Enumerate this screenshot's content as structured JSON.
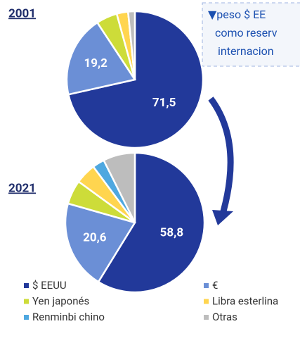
{
  "chart_data": [
    {
      "type": "pie",
      "title": "2001",
      "categories": [
        "$ EEUU",
        "€",
        "Yen japonés",
        "Libra esterlina",
        "Renminbi chino",
        "Otras"
      ],
      "values": [
        71.5,
        19.2,
        5.0,
        2.7,
        0,
        1.6
      ],
      "value_labels": [
        "71,5",
        "19,2",
        null,
        null,
        null,
        null
      ],
      "colors": [
        "#22399a",
        "#6b8fd6",
        "#cddc39",
        "#ffd54f",
        "#4fa8e0",
        "#bdbdbd"
      ],
      "annotation": [
        "▼peso $ EE",
        "como reserv",
        "internacion"
      ]
    },
    {
      "type": "pie",
      "title": "2021",
      "categories": [
        "$ EEUU",
        "€",
        "Yen japonés",
        "Libra esterlina",
        "Renminbi chino",
        "Otras"
      ],
      "values": [
        58.8,
        20.6,
        5.6,
        4.8,
        2.8,
        7.4
      ],
      "value_labels": [
        "58,8",
        "20,6",
        null,
        null,
        null,
        null
      ],
      "colors": [
        "#22399a",
        "#6b8fd6",
        "#cddc39",
        "#ffd54f",
        "#4fa8e0",
        "#bdbdbd"
      ]
    }
  ]
}
